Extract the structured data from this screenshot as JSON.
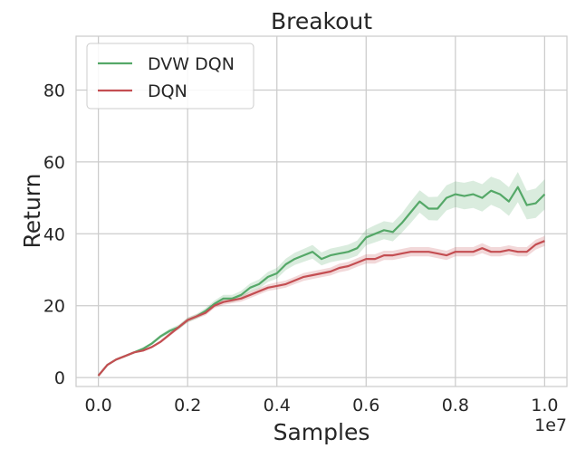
{
  "chart_data": {
    "type": "line",
    "title": "Breakout",
    "xlabel": "Samples",
    "ylabel": "Return",
    "x_offset_label": "1e7",
    "xlim": [
      -0.05,
      1.05
    ],
    "ylim": [
      -2.5,
      95
    ],
    "x_ticks": [
      0.0,
      0.2,
      0.4,
      0.6,
      0.8,
      1.0
    ],
    "x_tick_labels": [
      "0.0",
      "0.2",
      "0.4",
      "0.6",
      "0.8",
      "1.0"
    ],
    "y_ticks": [
      0,
      20,
      40,
      60,
      80
    ],
    "y_tick_labels": [
      "0",
      "20",
      "40",
      "60",
      "80"
    ],
    "grid": true,
    "legend_position": "top-left",
    "series": [
      {
        "name": "DVW DQN",
        "color": "#55a868",
        "x": [
          0.0,
          0.02,
          0.04,
          0.06,
          0.08,
          0.1,
          0.12,
          0.14,
          0.16,
          0.18,
          0.2,
          0.22,
          0.24,
          0.26,
          0.28,
          0.3,
          0.32,
          0.34,
          0.36,
          0.38,
          0.4,
          0.42,
          0.44,
          0.46,
          0.48,
          0.5,
          0.52,
          0.54,
          0.56,
          0.58,
          0.6,
          0.62,
          0.64,
          0.66,
          0.68,
          0.7,
          0.72,
          0.74,
          0.76,
          0.78,
          0.8,
          0.82,
          0.84,
          0.86,
          0.88,
          0.9,
          0.92,
          0.94,
          0.96,
          0.98,
          1.0
        ],
        "y": [
          0.5,
          3.5,
          5.0,
          6.0,
          7.0,
          8.0,
          9.5,
          11.5,
          13.0,
          14.0,
          16.0,
          17.0,
          18.5,
          20.5,
          22.0,
          22.0,
          23.0,
          25.0,
          26.0,
          28.0,
          29.0,
          31.5,
          33.0,
          34.0,
          35.0,
          33.0,
          34.0,
          34.5,
          35.0,
          36.0,
          39.0,
          40.0,
          41.0,
          40.5,
          43.0,
          46.0,
          49.0,
          47.0,
          47.0,
          50.0,
          51.0,
          50.5,
          51.0,
          50.0,
          52.0,
          51.0,
          49.0,
          53.0,
          48.0,
          48.5,
          51.0
        ],
        "lower": [
          0.5,
          3.3,
          4.8,
          5.8,
          6.8,
          7.7,
          9.1,
          11.0,
          12.4,
          13.3,
          15.3,
          16.3,
          17.7,
          19.6,
          21.0,
          21.0,
          21.9,
          23.8,
          24.7,
          26.6,
          27.5,
          29.9,
          31.3,
          32.2,
          33.1,
          31.2,
          32.1,
          32.6,
          33.0,
          33.9,
          36.8,
          37.6,
          38.5,
          37.9,
          40.3,
          43.0,
          45.9,
          43.8,
          43.7,
          46.5,
          47.4,
          46.8,
          47.2,
          46.2,
          48.1,
          47.0,
          45.0,
          48.8,
          44.0,
          44.4,
          46.8
        ],
        "upper": [
          0.5,
          3.7,
          5.2,
          6.2,
          7.2,
          8.3,
          9.9,
          12.0,
          13.6,
          14.7,
          16.7,
          17.7,
          19.3,
          21.4,
          23.0,
          23.0,
          24.1,
          26.2,
          27.3,
          29.4,
          30.5,
          33.1,
          34.7,
          35.8,
          36.9,
          34.8,
          35.9,
          36.4,
          37.0,
          38.1,
          41.2,
          42.4,
          43.5,
          43.1,
          45.7,
          49.0,
          52.1,
          50.2,
          50.3,
          53.5,
          54.6,
          54.2,
          54.8,
          53.8,
          55.9,
          55.0,
          53.0,
          57.2,
          52.0,
          52.6,
          55.2
        ]
      },
      {
        "name": "DQN",
        "color": "#c44e52",
        "x": [
          0.0,
          0.02,
          0.04,
          0.06,
          0.08,
          0.1,
          0.12,
          0.14,
          0.16,
          0.18,
          0.2,
          0.22,
          0.24,
          0.26,
          0.28,
          0.3,
          0.32,
          0.34,
          0.36,
          0.38,
          0.4,
          0.42,
          0.44,
          0.46,
          0.48,
          0.5,
          0.52,
          0.54,
          0.56,
          0.58,
          0.6,
          0.62,
          0.64,
          0.66,
          0.68,
          0.7,
          0.72,
          0.74,
          0.76,
          0.78,
          0.8,
          0.82,
          0.84,
          0.86,
          0.88,
          0.9,
          0.92,
          0.94,
          0.96,
          0.98,
          1.0
        ],
        "y": [
          0.5,
          3.5,
          5.0,
          6.0,
          7.0,
          7.5,
          8.5,
          10.0,
          12.0,
          14.0,
          16.0,
          17.0,
          18.0,
          20.0,
          21.0,
          21.5,
          22.0,
          23.0,
          24.0,
          25.0,
          25.5,
          26.0,
          27.0,
          28.0,
          28.5,
          29.0,
          29.5,
          30.5,
          31.0,
          32.0,
          33.0,
          33.0,
          34.0,
          34.0,
          34.5,
          35.0,
          35.0,
          35.0,
          34.5,
          34.0,
          35.0,
          35.0,
          35.0,
          36.0,
          35.0,
          35.0,
          35.5,
          35.0,
          35.0,
          37.0,
          38.0
        ],
        "lower": [
          0.5,
          3.4,
          4.8,
          5.8,
          6.8,
          7.2,
          8.2,
          9.6,
          11.5,
          13.5,
          15.4,
          16.4,
          17.3,
          19.3,
          20.2,
          20.7,
          21.1,
          22.1,
          23.1,
          24.1,
          24.5,
          25.0,
          26.0,
          26.9,
          27.4,
          27.9,
          28.4,
          29.3,
          29.8,
          30.8,
          31.7,
          31.7,
          32.7,
          32.7,
          33.2,
          33.7,
          33.7,
          33.7,
          33.2,
          32.7,
          33.7,
          33.7,
          33.7,
          34.6,
          33.7,
          33.7,
          34.2,
          33.7,
          33.7,
          35.6,
          36.6
        ],
        "upper": [
          0.5,
          3.6,
          5.2,
          6.2,
          7.2,
          7.8,
          8.8,
          10.4,
          12.5,
          14.5,
          16.6,
          17.6,
          18.7,
          20.7,
          21.8,
          22.3,
          22.9,
          23.9,
          24.9,
          25.9,
          26.5,
          27.0,
          28.0,
          29.1,
          29.6,
          30.1,
          30.6,
          31.7,
          32.2,
          33.2,
          34.3,
          34.3,
          35.3,
          35.3,
          35.8,
          36.3,
          36.3,
          36.3,
          35.8,
          35.3,
          36.3,
          36.3,
          36.3,
          37.4,
          36.3,
          36.3,
          36.8,
          36.3,
          36.3,
          38.4,
          39.4
        ]
      }
    ]
  }
}
